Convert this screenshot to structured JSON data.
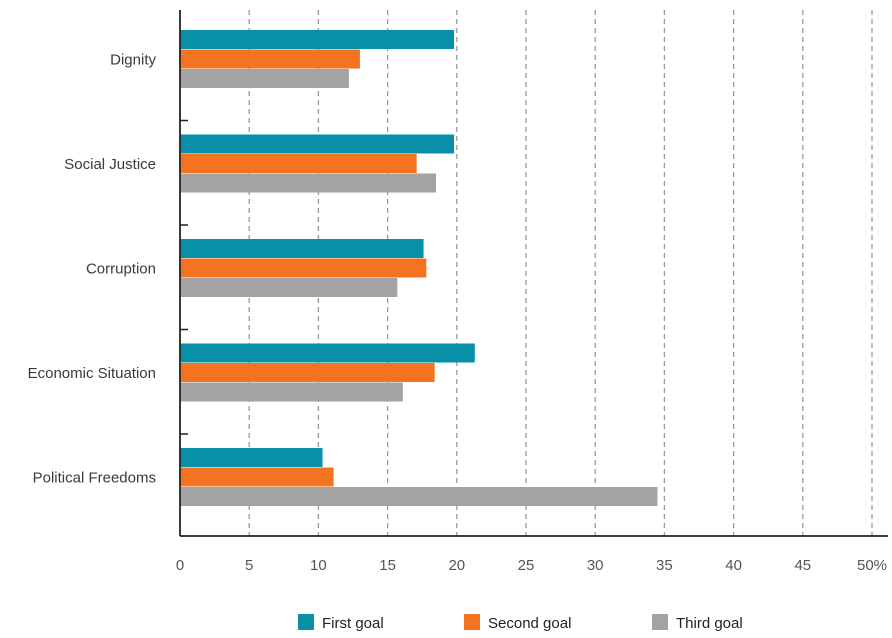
{
  "chart_data": {
    "type": "bar",
    "orientation": "horizontal",
    "categories": [
      "Dignity",
      "Social Justice",
      "Corruption",
      "Economic Situation",
      "Political Freedoms"
    ],
    "series": [
      {
        "name": "First goal",
        "color": "#0a8fa8",
        "values": [
          19.8,
          19.8,
          17.6,
          21.3,
          10.3
        ]
      },
      {
        "name": "Second goal",
        "color": "#f37321",
        "values": [
          13.0,
          17.1,
          17.8,
          18.4,
          11.1
        ]
      },
      {
        "name": "Third goal",
        "color": "#a3a3a3",
        "values": [
          12.2,
          18.5,
          15.7,
          16.1,
          34.5
        ]
      }
    ],
    "x_ticks": [
      "0",
      "5",
      "10",
      "15",
      "20",
      "25",
      "30",
      "35",
      "40",
      "45",
      "50%"
    ],
    "xlim": [
      0,
      50
    ],
    "grid": "vertical dashed",
    "legend_position": "bottom-center"
  }
}
